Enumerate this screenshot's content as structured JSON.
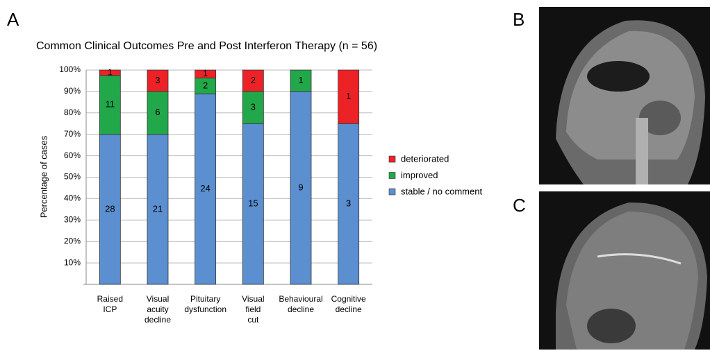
{
  "panels": [
    "A",
    "B",
    "C"
  ],
  "chart_data": {
    "type": "stacked_bar",
    "title": "Common Clinical Outcomes Pre and Post Interferon Therapy (n = 56)",
    "y_label": "Percentage of cases",
    "categories": [
      "Raised ICP",
      "Visual acuity decline",
      "Pituitary dysfunction",
      "Visual field cut",
      "Behavioural decline",
      "Cognitive decline"
    ],
    "series": [
      {
        "name": "stable / no comment",
        "color": "#5b8fd0",
        "values": [
          70,
          70,
          88.9,
          75,
          90,
          75
        ],
        "counts": [
          28,
          21,
          24,
          15,
          9,
          3
        ]
      },
      {
        "name": "improved",
        "color": "#22a84a",
        "values": [
          27.5,
          20,
          7.4,
          15,
          10,
          0
        ],
        "counts": [
          11,
          6,
          2,
          3,
          1,
          null
        ]
      },
      {
        "name": "deteriorated",
        "color": "#ec2227",
        "values": [
          2.5,
          10,
          3.7,
          10,
          0,
          25
        ],
        "counts": [
          1,
          3,
          1,
          2,
          null,
          1
        ]
      }
    ],
    "ylim": [
      0,
      100
    ],
    "yticks": [
      {
        "value": 10,
        "label": "10%"
      },
      {
        "value": 20,
        "label": "20%"
      },
      {
        "value": 30,
        "label": "30%"
      },
      {
        "value": 40,
        "label": "40%"
      },
      {
        "value": 50,
        "label": "50%"
      },
      {
        "value": 60,
        "label": "60%"
      },
      {
        "value": 70,
        "label": "70%"
      },
      {
        "value": 80,
        "label": "80%"
      },
      {
        "value": 90,
        "label": "90%"
      },
      {
        "value": 100,
        "label": "100%"
      }
    ],
    "grid": true
  }
}
